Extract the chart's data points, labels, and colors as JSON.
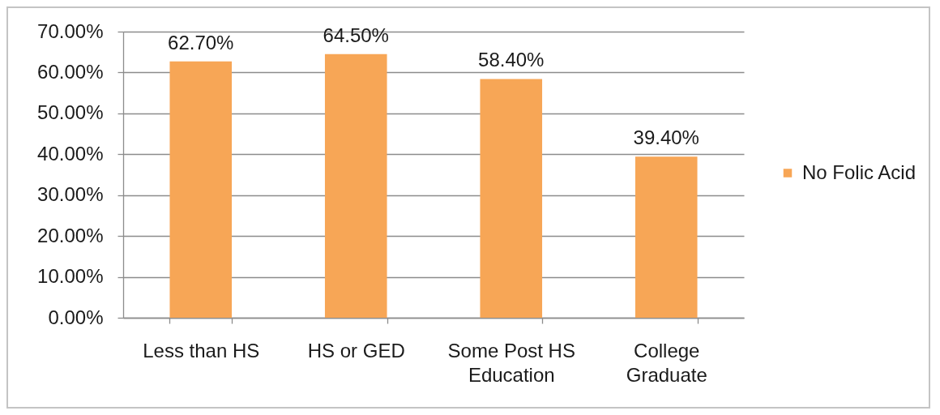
{
  "chart_data": {
    "type": "bar",
    "categories": [
      "Less than HS",
      "HS or GED",
      "Some Post HS Education",
      "College Graduate"
    ],
    "series": [
      {
        "name": "No Folic Acid",
        "color": "#f7a656",
        "values": [
          62.7,
          64.5,
          58.4,
          39.4
        ],
        "value_labels": [
          "62.70%",
          "64.50%",
          "58.40%",
          "39.40%"
        ]
      }
    ],
    "ylim": [
      0,
      70
    ],
    "yticks": [
      {
        "value": 0,
        "label": "0.00%"
      },
      {
        "value": 10,
        "label": "10.00%"
      },
      {
        "value": 20,
        "label": "20.00%"
      },
      {
        "value": 30,
        "label": "30.00%"
      },
      {
        "value": 40,
        "label": "40.00%"
      },
      {
        "value": 50,
        "label": "50.00%"
      },
      {
        "value": 60,
        "label": "60.00%"
      },
      {
        "value": 70,
        "label": "70.00%"
      }
    ],
    "grid": "y",
    "legend": "right"
  }
}
